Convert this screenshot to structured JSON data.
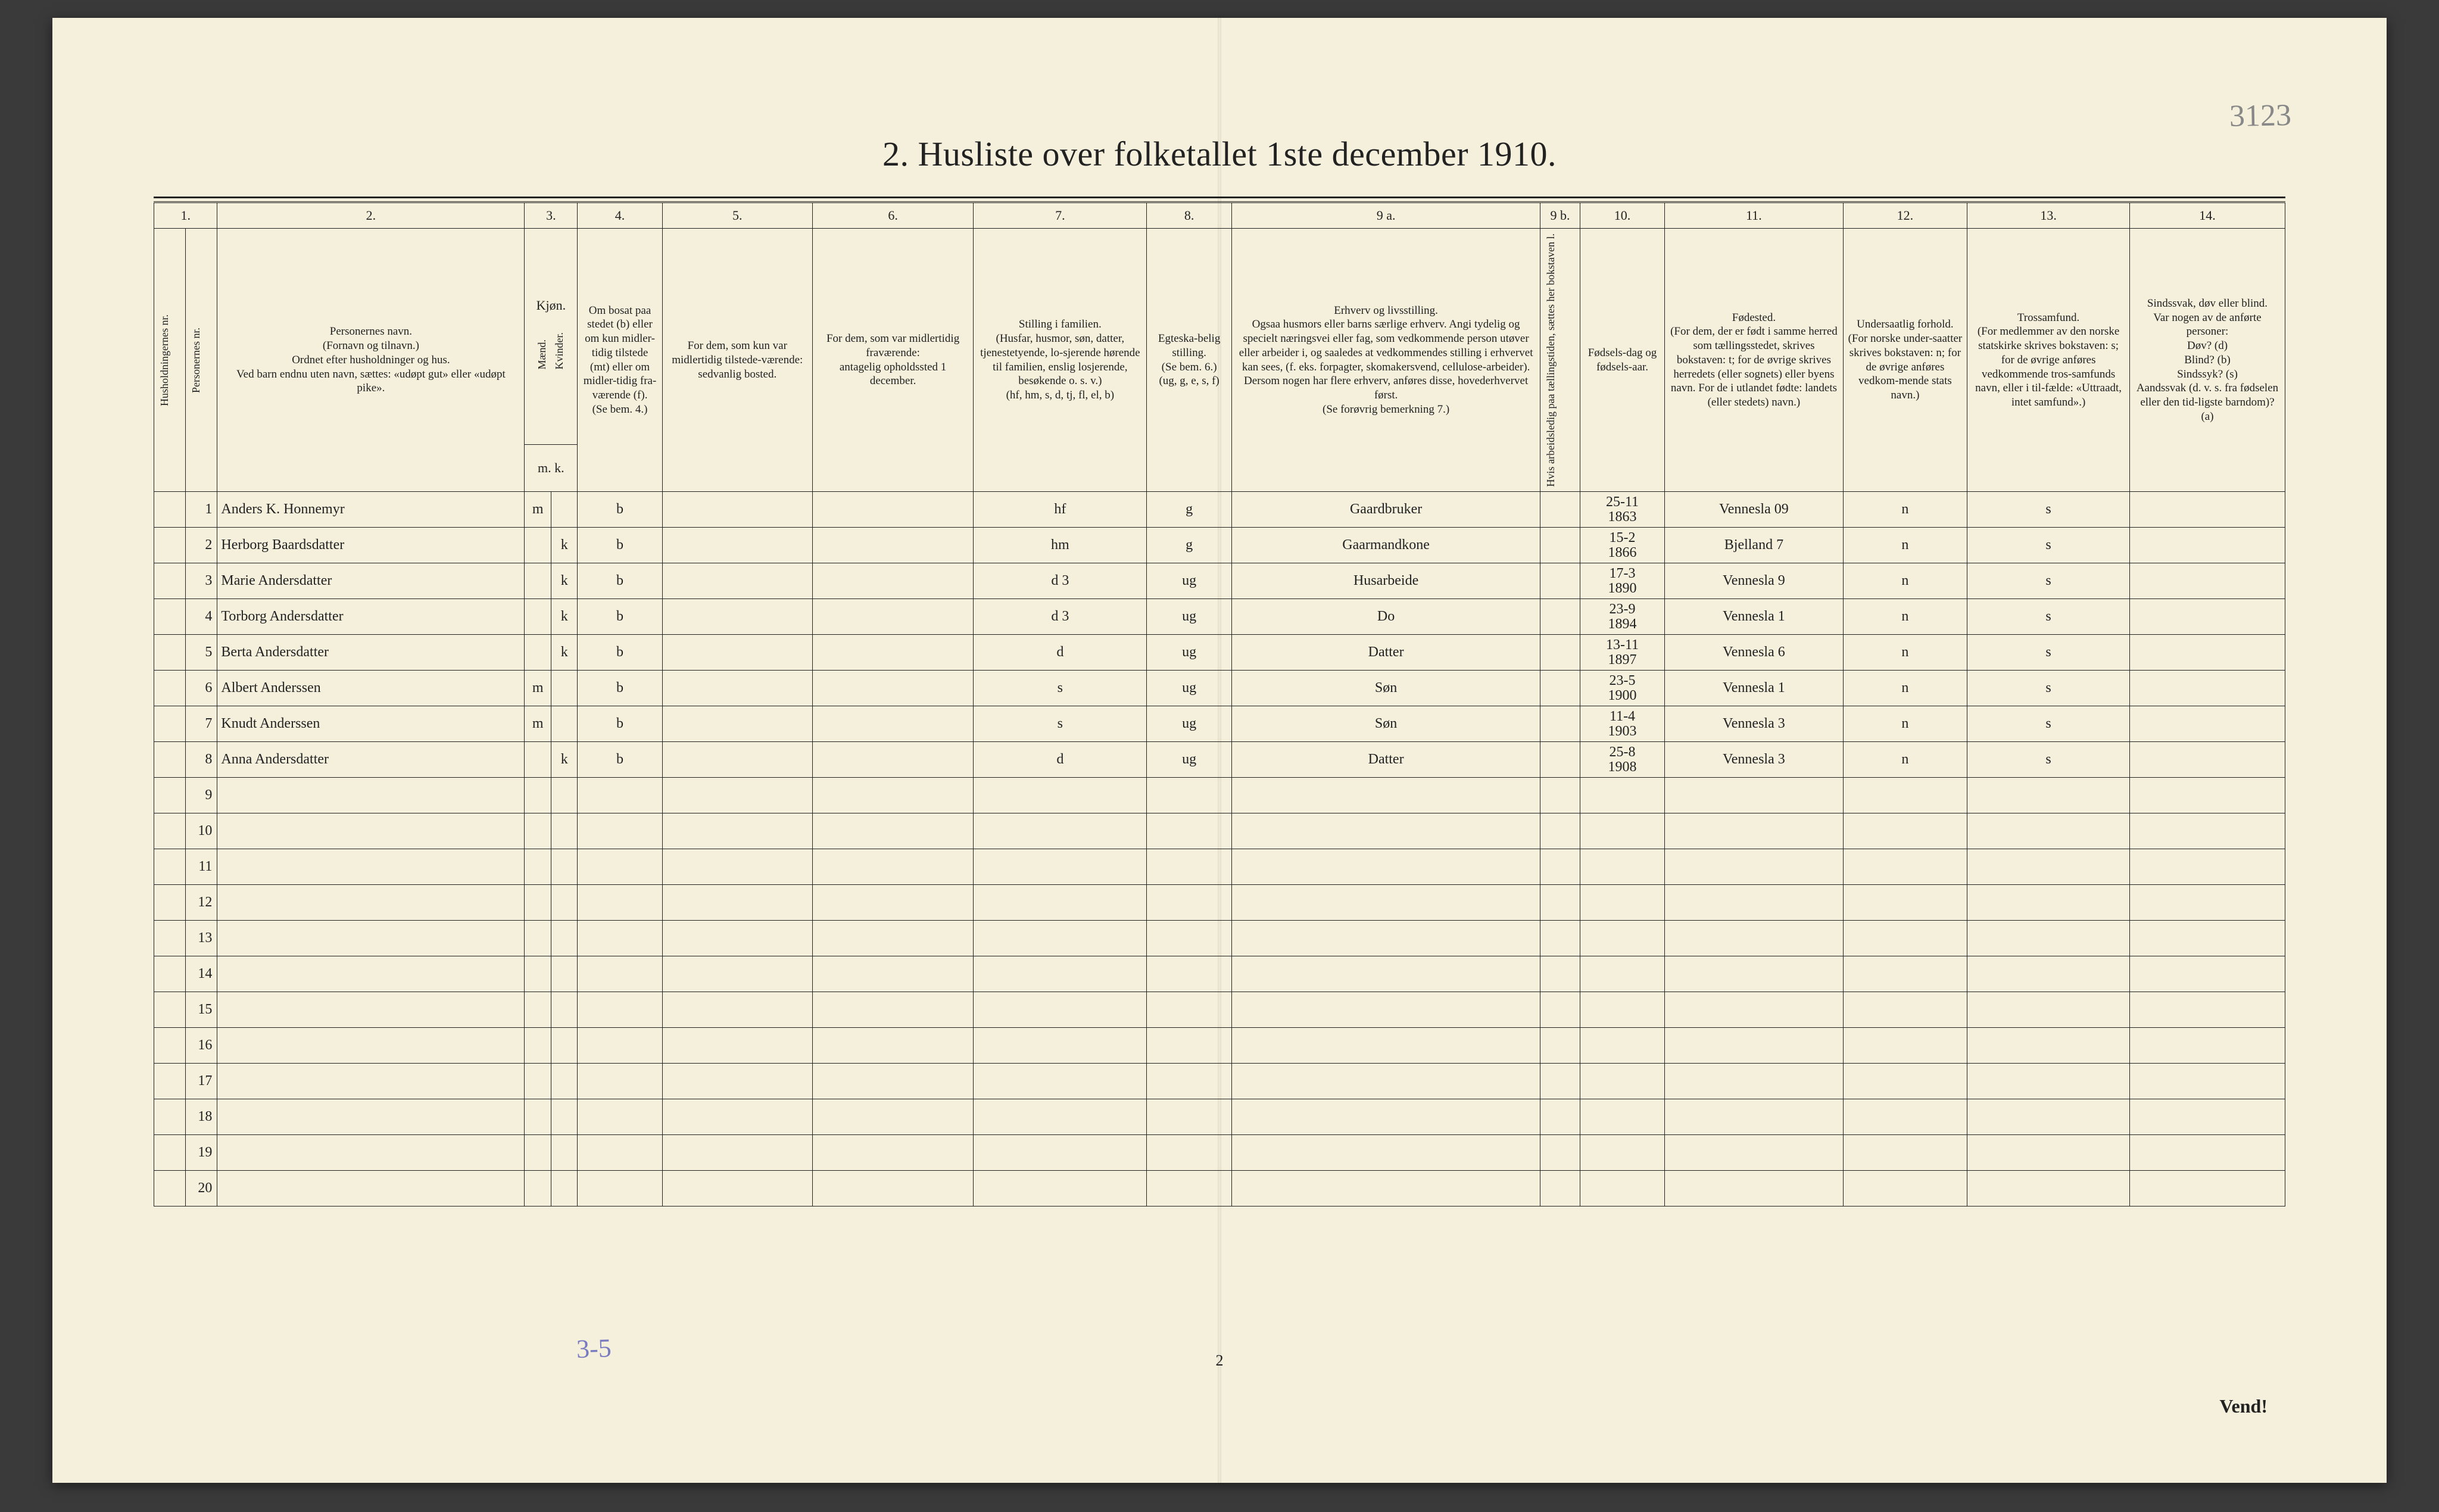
{
  "page": {
    "title": "2.  Husliste over folketallet 1ste december 1910.",
    "pencil_topright": "3123",
    "pencil_bottom": "3-5",
    "footer_pagenum": "2",
    "footer_vend": "Vend!"
  },
  "colors": {
    "paper_bg": "#f4f0dc",
    "ink": "#222222",
    "pencil": "#888888",
    "pencil_blue": "#7a7ac0",
    "outer_bg": "#3a3a3a"
  },
  "columns": {
    "numbers": [
      "1.",
      "2.",
      "3.",
      "4.",
      "5.",
      "6.",
      "7.",
      "8.",
      "9 a.",
      "9 b.",
      "10.",
      "11.",
      "12.",
      "13.",
      "14."
    ],
    "h_1": "Husholdningernes nr.",
    "h_1b": "Personernes nr.",
    "h_2": "Personernes navn.\n(Fornavn og tilnavn.)\nOrdnet efter husholdninger og hus.\nVed barn endnu uten navn, sættes: «udøpt gut» eller «udøpt pike».",
    "h_3": "Kjøn.",
    "h_3a": "Mænd.",
    "h_3b": "Kvinder.",
    "h_3_sub": "m.  k.",
    "h_4": "Om bosat paa stedet (b) eller om kun midler-tidig tilstede (mt) eller om midler-tidig fra-værende (f).\n(Se bem. 4.)",
    "h_5": "For dem, som kun var midlertidig tilstede-værende:\nsedvanlig bosted.",
    "h_6": "For dem, som var midlertidig fraværende:\nantagelig opholdssted 1 december.",
    "h_7": "Stilling i familien.\n(Husfar, husmor, søn, datter, tjenestetyende, lo-sjerende hørende til familien, enslig losjerende, besøkende o. s. v.)\n(hf, hm, s, d, tj, fl, el, b)",
    "h_8": "Egteska-belig stilling.\n(Se bem. 6.)\n(ug, g, e, s, f)",
    "h_9a": "Erhverv og livsstilling.\nOgsaa husmors eller barns særlige erhverv. Angi tydelig og specielt næringsvei eller fag, som vedkommende person utøver eller arbeider i, og saaledes at vedkommendes stilling i erhvervet kan sees, (f. eks. forpagter, skomakersvend, cellulose-arbeider). Dersom nogen har flere erhverv, anføres disse, hovederhvervet først.\n(Se forøvrig bemerkning 7.)",
    "h_9b": "Hvis arbeidsledig paa tællingstiden, sættes her bokstaven l.",
    "h_10": "Fødsels-dag og fødsels-aar.",
    "h_11": "Fødested.\n(For dem, der er født i samme herred som tællingsstedet, skrives bokstaven: t; for de øvrige skrives herredets (eller sognets) eller byens navn. For de i utlandet fødte: landets (eller stedets) navn.)",
    "h_12": "Undersaatlig forhold.\n(For norske under-saatter skrives bokstaven: n; for de øvrige anføres vedkom-mende stats navn.)",
    "h_13": "Trossamfund.\n(For medlemmer av den norske statskirke skrives bokstaven: s; for de øvrige anføres vedkommende tros-samfunds navn, eller i til-fælde: «Uttraadt, intet samfund».)",
    "h_14": "Sindssvak, døv eller blind.\nVar nogen av de anførte personer:\nDøv?     (d)\nBlind?   (b)\nSindssyk? (s)\nAandssvak (d. v. s. fra fødselen eller den tid-ligste barndom)? (a)"
  },
  "rows": [
    {
      "n": "1",
      "name": "Anders K. Honnemyr",
      "sex_m": "m",
      "sex_k": "",
      "res": "b",
      "c5": "",
      "c6": "",
      "fam": "hf",
      "mar": "g",
      "occ": "Gaardbruker",
      "c9b": "",
      "birth": "25-11\n1863",
      "birthplace": "Vennesla 09",
      "nat": "n",
      "rel": "s",
      "c14": ""
    },
    {
      "n": "2",
      "name": "Herborg Baardsdatter",
      "sex_m": "",
      "sex_k": "k",
      "res": "b",
      "c5": "",
      "c6": "",
      "fam": "hm",
      "mar": "g",
      "occ": "Gaarmandkone",
      "c9b": "",
      "birth": "15-2\n1866",
      "birthplace": "Bjelland 7",
      "nat": "n",
      "rel": "s",
      "c14": ""
    },
    {
      "n": "3",
      "name": "Marie Andersdatter",
      "sex_m": "",
      "sex_k": "k",
      "res": "b",
      "c5": "",
      "c6": "",
      "fam": "d      3",
      "mar": "ug",
      "occ": "Husarbeide",
      "c9b": "",
      "birth": "17-3\n1890",
      "birthplace": "Vennesla 9",
      "nat": "n",
      "rel": "s",
      "c14": ""
    },
    {
      "n": "4",
      "name": "Torborg Andersdatter",
      "sex_m": "",
      "sex_k": "k",
      "res": "b",
      "c5": "",
      "c6": "",
      "fam": "d      3",
      "mar": "ug",
      "occ": "Do",
      "c9b": "",
      "birth": "23-9\n1894",
      "birthplace": "Vennesla 1",
      "nat": "n",
      "rel": "s",
      "c14": ""
    },
    {
      "n": "5",
      "name": "Berta Andersdatter",
      "sex_m": "",
      "sex_k": "k",
      "res": "b",
      "c5": "",
      "c6": "",
      "fam": "d",
      "mar": "ug",
      "occ": "Datter",
      "c9b": "",
      "birth": "13-11\n1897",
      "birthplace": "Vennesla 6",
      "nat": "n",
      "rel": "s",
      "c14": ""
    },
    {
      "n": "6",
      "name": "Albert Anderssen",
      "sex_m": "m",
      "sex_k": "",
      "res": "b",
      "c5": "",
      "c6": "",
      "fam": "s",
      "mar": "ug",
      "occ": "Søn",
      "c9b": "",
      "birth": "23-5\n1900",
      "birthplace": "Vennesla 1",
      "nat": "n",
      "rel": "s",
      "c14": ""
    },
    {
      "n": "7",
      "name": "Knudt Anderssen",
      "sex_m": "m",
      "sex_k": "",
      "res": "b",
      "c5": "",
      "c6": "",
      "fam": "s",
      "mar": "ug",
      "occ": "Søn",
      "c9b": "",
      "birth": "11-4\n1903",
      "birthplace": "Vennesla 3",
      "nat": "n",
      "rel": "s",
      "c14": ""
    },
    {
      "n": "8",
      "name": "Anna Andersdatter",
      "sex_m": "",
      "sex_k": "k",
      "res": "b",
      "c5": "",
      "c6": "",
      "fam": "d",
      "mar": "ug",
      "occ": "Datter",
      "c9b": "",
      "birth": "25-8\n1908",
      "birthplace": "Vennesla 3",
      "nat": "n",
      "rel": "s",
      "c14": ""
    }
  ],
  "empty_rows": [
    "9",
    "10",
    "11",
    "12",
    "13",
    "14",
    "15",
    "16",
    "17",
    "18",
    "19",
    "20"
  ]
}
